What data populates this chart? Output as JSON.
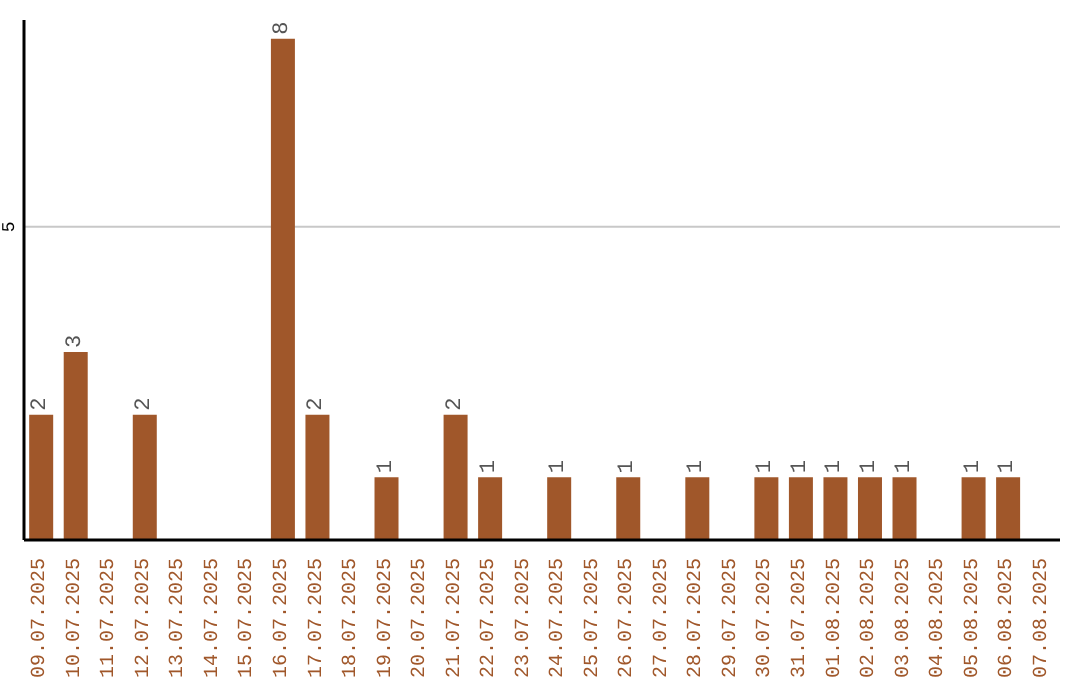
{
  "chart_data": {
    "type": "bar",
    "categories": [
      "09.07.2025",
      "10.07.2025",
      "11.07.2025",
      "12.07.2025",
      "13.07.2025",
      "14.07.2025",
      "15.07.2025",
      "16.07.2025",
      "17.07.2025",
      "18.07.2025",
      "19.07.2025",
      "20.07.2025",
      "21.07.2025",
      "22.07.2025",
      "23.07.2025",
      "24.07.2025",
      "25.07.2025",
      "26.07.2025",
      "27.07.2025",
      "28.07.2025",
      "29.07.2025",
      "30.07.2025",
      "31.07.2025",
      "01.08.2025",
      "02.08.2025",
      "03.08.2025",
      "04.08.2025",
      "05.08.2025",
      "06.08.2025",
      "07.08.2025"
    ],
    "values": [
      2,
      3,
      0,
      2,
      0,
      0,
      0,
      8,
      2,
      0,
      1,
      0,
      2,
      1,
      0,
      1,
      0,
      1,
      0,
      1,
      0,
      1,
      1,
      1,
      1,
      1,
      0,
      1,
      1,
      0
    ],
    "value_labels": [
      "2",
      "3",
      null,
      "2",
      null,
      null,
      null,
      "8",
      "2",
      null,
      "1",
      null,
      "2",
      "1",
      null,
      "1",
      null,
      "1",
      null,
      "1",
      null,
      "1",
      "1",
      "1",
      "1",
      "1",
      null,
      "1",
      "1",
      null
    ],
    "color": "#a0572a",
    "ylim": [
      0,
      8.3
    ],
    "yticks": [
      5
    ],
    "grid": "y"
  }
}
